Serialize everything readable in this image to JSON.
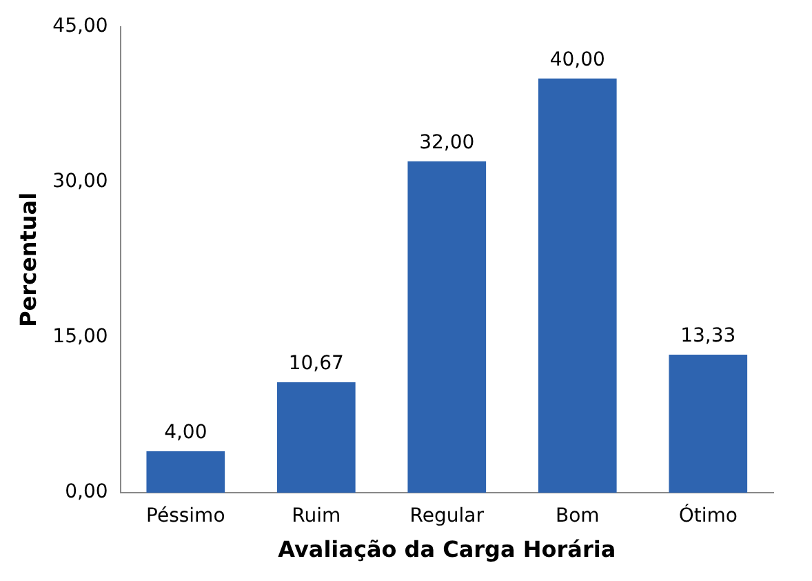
{
  "chart_data": {
    "type": "bar",
    "xlabel": "Avaliação da Carga Horária",
    "ylabel": "Percentual",
    "categories": [
      "Péssimo",
      "Ruim",
      "Regular",
      "Bom",
      "Ótimo"
    ],
    "values": [
      4,
      10.67,
      32,
      40,
      13.33
    ],
    "value_labels": [
      "4,00",
      "10,67",
      "32,00",
      "40,00",
      "13,33"
    ],
    "color": "#2e64b0",
    "ylim": [
      0,
      45
    ],
    "yticks": [
      {
        "value": 0,
        "label": "0,00"
      },
      {
        "value": 15,
        "label": "15,00"
      },
      {
        "value": 30,
        "label": "30,00"
      },
      {
        "value": 45,
        "label": "45,00"
      }
    ],
    "grid": false,
    "legend": false
  }
}
